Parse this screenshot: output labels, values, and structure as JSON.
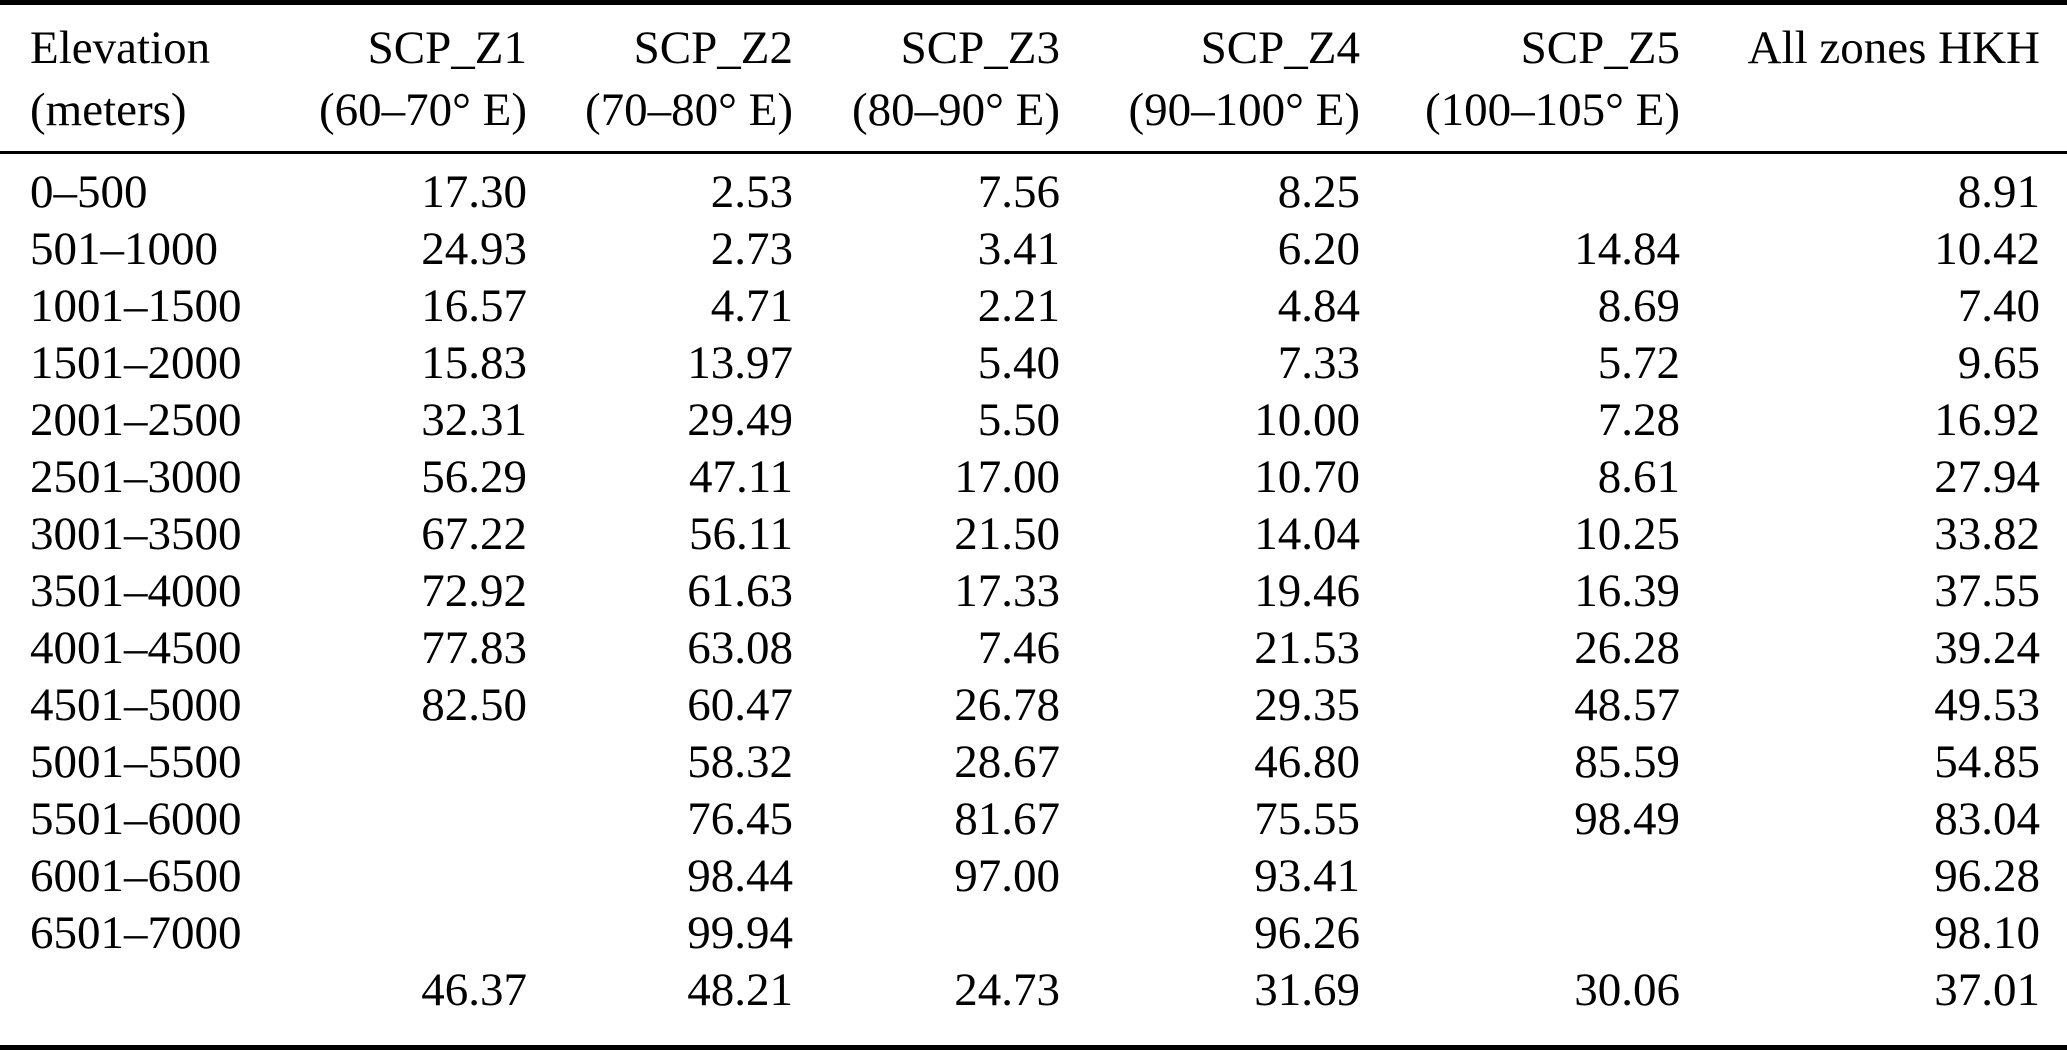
{
  "colors": {
    "text": "#000000",
    "background": "#ffffff",
    "rule": "#000000"
  },
  "table": {
    "columns": [
      {
        "line1": "Elevation",
        "line2": "(meters)"
      },
      {
        "line1": "SCP_Z1",
        "line2": "(60–70° E)"
      },
      {
        "line1": "SCP_Z2",
        "line2": "(70–80° E)"
      },
      {
        "line1": "SCP_Z3",
        "line2": "(80–90° E)"
      },
      {
        "line1": "SCP_Z4",
        "line2": "(90–100° E)"
      },
      {
        "line1": "SCP_Z5",
        "line2": "(100–105° E)"
      },
      {
        "line1": "All zones HKH",
        "line2": ""
      }
    ],
    "rows": [
      [
        "0–500",
        "17.30",
        "2.53",
        "7.56",
        "8.25",
        "",
        "8.91"
      ],
      [
        "501–1000",
        "24.93",
        "2.73",
        "3.41",
        "6.20",
        "14.84",
        "10.42"
      ],
      [
        "1001–1500",
        "16.57",
        "4.71",
        "2.21",
        "4.84",
        "8.69",
        "7.40"
      ],
      [
        "1501–2000",
        "15.83",
        "13.97",
        "5.40",
        "7.33",
        "5.72",
        "9.65"
      ],
      [
        "2001–2500",
        "32.31",
        "29.49",
        "5.50",
        "10.00",
        "7.28",
        "16.92"
      ],
      [
        "2501–3000",
        "56.29",
        "47.11",
        "17.00",
        "10.70",
        "8.61",
        "27.94"
      ],
      [
        "3001–3500",
        "67.22",
        "56.11",
        "21.50",
        "14.04",
        "10.25",
        "33.82"
      ],
      [
        "3501–4000",
        "72.92",
        "61.63",
        "17.33",
        "19.46",
        "16.39",
        "37.55"
      ],
      [
        "4001–4500",
        "77.83",
        "63.08",
        "7.46",
        "21.53",
        "26.28",
        "39.24"
      ],
      [
        "4501–5000",
        "82.50",
        "60.47",
        "26.78",
        "29.35",
        "48.57",
        "49.53"
      ],
      [
        "5001–5500",
        "",
        "58.32",
        "28.67",
        "46.80",
        "85.59",
        "54.85"
      ],
      [
        "5501–6000",
        "",
        "76.45",
        "81.67",
        "75.55",
        "98.49",
        "83.04"
      ],
      [
        "6001–6500",
        "",
        "98.44",
        "97.00",
        "93.41",
        "",
        "96.28"
      ],
      [
        "6501–7000",
        "",
        "99.94",
        "",
        "96.26",
        "",
        "98.10"
      ],
      [
        "",
        "46.37",
        "48.21",
        "24.73",
        "31.69",
        "30.06",
        "37.01"
      ]
    ]
  }
}
